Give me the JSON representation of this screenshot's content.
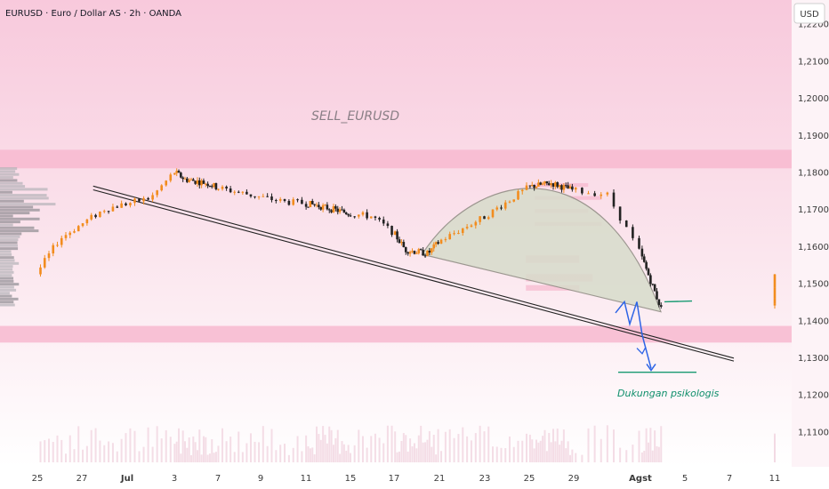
{
  "header": {
    "symbol_title": "EURUSD · Euro / Dollar AS · 2h · OANDA"
  },
  "currency_button": "USD",
  "annotations": {
    "sell": "SELL_EURUSD",
    "support": "Dukungan psikologis"
  },
  "colors": {
    "bg_top": "#f7d3e1",
    "bg_bottom": "#ffffff",
    "zone": "#f7b8cf",
    "up": "#f28c1e",
    "down": "#222222",
    "trendline": "#222222",
    "arc_fill": "#d7dccb",
    "green": "#189a72",
    "blue": "#2d64e6"
  },
  "chart_data": {
    "type": "candlestick",
    "symbol": "EURUSD",
    "timeframe": "2h",
    "source": "OANDA",
    "y_ticks": [
      "1,22000",
      "1,21000",
      "1,20000",
      "1,19000",
      "1,18000",
      "1,17000",
      "1,16000",
      "1,15000",
      "1,14000",
      "1,13000",
      "1,12000",
      "1,11000"
    ],
    "x_ticks": [
      "25",
      "27",
      "Jul",
      "3",
      "7",
      "9",
      "11",
      "15",
      "17",
      "21",
      "23",
      "25",
      "29",
      "Agst",
      "5",
      "7",
      "11"
    ],
    "ylim": [
      1.1005,
      1.224
    ],
    "resistance_zone": [
      1.181,
      1.186
    ],
    "support_zone": [
      1.134,
      1.1385
    ],
    "psychological_support": 1.126,
    "price_path": [
      {
        "x": "24 Jun",
        "y": 1.144
      },
      {
        "x": "26 Jun",
        "y": 1.162
      },
      {
        "x": "28 Jun",
        "y": 1.17
      },
      {
        "x": "30 Jun",
        "y": 1.173
      },
      {
        "x": "1 Jul",
        "y": 1.18
      },
      {
        "x": "2 Jul",
        "y": 1.178
      },
      {
        "x": "4 Jul",
        "y": 1.177
      },
      {
        "x": "8 Jul",
        "y": 1.172
      },
      {
        "x": "10 Jul",
        "y": 1.171
      },
      {
        "x": "14 Jul",
        "y": 1.168
      },
      {
        "x": "16 Jul",
        "y": 1.159
      },
      {
        "x": "18 Jul",
        "y": 1.158
      },
      {
        "x": "21 Jul",
        "y": 1.168
      },
      {
        "x": "23 Jul",
        "y": 1.176
      },
      {
        "x": "25 Jul",
        "y": 1.177
      },
      {
        "x": "28 Jul",
        "y": 1.174
      },
      {
        "x": "29 Jul",
        "y": 1.158
      },
      {
        "x": "31 Jul",
        "y": 1.142
      }
    ]
  }
}
